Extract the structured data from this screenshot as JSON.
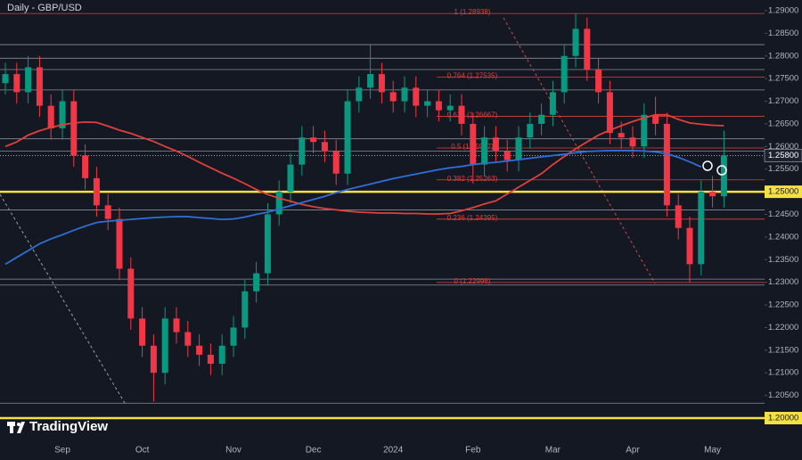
{
  "chart_data": {
    "type": "candlestick",
    "title": "Daily - GBP/USD",
    "branding": "TradingView",
    "categories": [
      null,
      null,
      null,
      null,
      null,
      "Sep",
      null,
      null,
      null,
      null,
      null,
      null,
      "Oct",
      null,
      null,
      null,
      null,
      null,
      null,
      null,
      "Nov",
      null,
      null,
      null,
      null,
      null,
      null,
      "Dec",
      null,
      null,
      null,
      null,
      null,
      null,
      "2024",
      null,
      null,
      null,
      null,
      null,
      null,
      "Feb",
      null,
      null,
      null,
      null,
      null,
      null,
      "Mar",
      null,
      null,
      null,
      null,
      null,
      null,
      "Apr",
      null,
      null,
      null,
      null,
      null,
      null,
      "May",
      null
    ],
    "open": [
      1.274,
      1.276,
      1.272,
      1.2775,
      1.269,
      1.264,
      1.27,
      1.258,
      1.253,
      1.247,
      1.244,
      1.233,
      1.222,
      1.216,
      1.21,
      1.222,
      1.219,
      1.216,
      1.214,
      1.212,
      1.216,
      1.22,
      1.228,
      1.232,
      1.245,
      1.25,
      1.256,
      1.262,
      1.261,
      1.259,
      1.254,
      1.27,
      1.273,
      1.276,
      1.272,
      1.27,
      1.273,
      1.269,
      1.27,
      1.268,
      1.269,
      1.265,
      1.256,
      1.262,
      1.259,
      1.257,
      1.262,
      1.265,
      1.267,
      1.272,
      1.28,
      1.286,
      1.277,
      1.272,
      1.263,
      1.262,
      1.26,
      1.267,
      1.265,
      1.247,
      1.242,
      1.234,
      1.25,
      1.249
    ],
    "high": [
      1.2785,
      1.2785,
      1.28,
      1.28,
      1.2715,
      1.2725,
      1.2725,
      1.2605,
      1.2555,
      1.2495,
      1.2465,
      1.2355,
      1.2245,
      1.2185,
      1.2245,
      1.2245,
      1.2215,
      1.2185,
      1.2165,
      1.2185,
      1.2225,
      1.2305,
      1.2345,
      1.2475,
      1.2525,
      1.2585,
      1.2645,
      1.2645,
      1.2635,
      1.2615,
      1.2725,
      1.2755,
      1.2825,
      1.2785,
      1.2745,
      1.2755,
      1.2755,
      1.2725,
      1.2725,
      1.2715,
      1.2715,
      1.2675,
      1.2645,
      1.2645,
      1.2615,
      1.2645,
      1.2675,
      1.2695,
      1.2745,
      1.2825,
      1.2894,
      1.2885,
      1.2795,
      1.2745,
      1.2655,
      1.2645,
      1.2695,
      1.271,
      1.2675,
      1.2495,
      1.2445,
      1.2525,
      1.2535,
      1.2635
    ],
    "low": [
      1.2715,
      1.2695,
      1.2695,
      1.2665,
      1.2615,
      1.2615,
      1.2555,
      1.2505,
      1.2445,
      1.2415,
      1.2305,
      1.2195,
      1.2135,
      1.2037,
      1.2075,
      1.2165,
      1.2135,
      1.2115,
      1.2095,
      1.2095,
      1.2135,
      1.2175,
      1.2255,
      1.2295,
      1.2425,
      1.2475,
      1.2535,
      1.2585,
      1.2565,
      1.2515,
      1.2515,
      1.2675,
      1.2705,
      1.2695,
      1.2675,
      1.2675,
      1.2665,
      1.2665,
      1.2655,
      1.2655,
      1.2625,
      1.2518,
      1.2535,
      1.2565,
      1.2545,
      1.2545,
      1.2595,
      1.2625,
      1.2645,
      1.2695,
      1.2775,
      1.2745,
      1.2695,
      1.2605,
      1.2595,
      1.2575,
      1.2575,
      1.2625,
      1.2445,
      1.2395,
      1.23,
      1.2315,
      1.2465,
      1.2465
    ],
    "close": [
      1.276,
      1.272,
      1.2775,
      1.269,
      1.264,
      1.27,
      1.258,
      1.253,
      1.247,
      1.244,
      1.233,
      1.222,
      1.216,
      1.21,
      1.222,
      1.219,
      1.216,
      1.214,
      1.212,
      1.216,
      1.22,
      1.228,
      1.232,
      1.245,
      1.25,
      1.256,
      1.262,
      1.261,
      1.259,
      1.254,
      1.27,
      1.273,
      1.276,
      1.272,
      1.27,
      1.273,
      1.269,
      1.27,
      1.268,
      1.269,
      1.265,
      1.256,
      1.262,
      1.259,
      1.257,
      1.262,
      1.265,
      1.267,
      1.272,
      1.28,
      1.286,
      1.277,
      1.272,
      1.263,
      1.262,
      1.26,
      1.267,
      1.265,
      1.247,
      1.242,
      1.234,
      1.25,
      1.249,
      1.258
    ],
    "up_color": "#089981",
    "down_color": "#f23645",
    "series": [
      {
        "color": "#e0403a",
        "values": [
          1.26,
          1.261,
          1.2625,
          1.2635,
          1.2642,
          1.2648,
          1.2652,
          1.2654,
          1.2653,
          1.2645,
          1.2636,
          1.2629,
          1.262,
          1.2611,
          1.26,
          1.259,
          1.2578,
          1.2565,
          1.2553,
          1.2541,
          1.253,
          1.2518,
          1.2505,
          1.2494,
          1.2486,
          1.2479,
          1.2472,
          1.2467,
          1.2463,
          1.246,
          1.2457,
          1.2455,
          1.2454,
          1.2453,
          1.2453,
          1.2452,
          1.2452,
          1.2451,
          1.2451,
          1.2452,
          1.2458,
          1.2465,
          1.2473,
          1.248,
          1.2495,
          1.251,
          1.2525,
          1.254,
          1.256,
          1.2578,
          1.2595,
          1.261,
          1.2625,
          1.2636,
          1.2646,
          1.2655,
          1.2663,
          1.267,
          1.267,
          1.266,
          1.2652,
          1.2649,
          1.2647,
          1.2646
        ]
      },
      {
        "color": "#2f6fd6",
        "values": [
          1.234,
          1.2355,
          1.237,
          1.2385,
          1.2396,
          1.2405,
          1.2415,
          1.2424,
          1.2432,
          1.2435,
          1.2437,
          1.2439,
          1.2441,
          1.2443,
          1.2444,
          1.2445,
          1.2445,
          1.2443,
          1.2441,
          1.2439,
          1.244,
          1.2444,
          1.245,
          1.2455,
          1.2462,
          1.2469,
          1.2476,
          1.2483,
          1.249,
          1.2498,
          1.2505,
          1.2511,
          1.2517,
          1.2523,
          1.2529,
          1.2534,
          1.2539,
          1.2544,
          1.2549,
          1.2553,
          1.2556,
          1.256,
          1.2563,
          1.2565,
          1.2568,
          1.2571,
          1.2574,
          1.2577,
          1.258,
          1.2583,
          1.2586,
          1.2589,
          1.259,
          1.2591,
          1.2591,
          1.2591,
          1.259,
          1.2588,
          1.2584,
          1.2576,
          1.2566,
          1.2555,
          null,
          null
        ]
      }
    ],
    "ylim": [
      1.19626,
      1.29236
    ],
    "yticks": [
      {
        "value": 1.29,
        "label": "1.29000"
      },
      {
        "value": 1.285,
        "label": "1.28500"
      },
      {
        "value": 1.28,
        "label": "1.28000"
      },
      {
        "value": 1.275,
        "label": "1.27500"
      },
      {
        "value": 1.27,
        "label": "1.27000"
      },
      {
        "value": 1.265,
        "label": "1.26500"
      },
      {
        "value": 1.26,
        "label": "1.26000"
      },
      {
        "value": 1.255,
        "label": "1.25500"
      },
      {
        "value": 1.245,
        "label": "1.24500"
      },
      {
        "value": 1.24,
        "label": "1.24000"
      },
      {
        "value": 1.235,
        "label": "1.23500"
      },
      {
        "value": 1.23,
        "label": "1.23000"
      },
      {
        "value": 1.225,
        "label": "1.22500"
      },
      {
        "value": 1.22,
        "label": "1.22000"
      },
      {
        "value": 1.215,
        "label": "1.21500"
      },
      {
        "value": 1.21,
        "label": "1.21000"
      },
      {
        "value": 1.205,
        "label": "1.20500"
      }
    ],
    "key_levels": [
      {
        "value": 1.25,
        "label": "1.25000"
      },
      {
        "value": 1.2,
        "label": "1.20000"
      }
    ],
    "key_level_color": "#f5e042",
    "last_price": {
      "value": 1.258,
      "label": "1.25800"
    },
    "levels": [
      1.2825,
      1.2795,
      1.277,
      1.2725,
      1.2617,
      1.259,
      1.246,
      1.2307,
      1.2294,
      1.2033
    ],
    "fib_levels": [
      {
        "value": 1.28938,
        "label": "1 (1.28938)"
      },
      {
        "value": 1.27535,
        "label": "0.764 (1.27535)"
      },
      {
        "value": 1.26667,
        "label": "0.618 (1.26667)"
      },
      {
        "value": 1.25967,
        "label": "0.5 (1.25967)"
      },
      {
        "value": 1.25263,
        "label": "0.382 (1.25263)"
      },
      {
        "value": 1.24395,
        "label": "0.236 (1.24395)"
      },
      {
        "value": 1.22996,
        "label": "0 (1.22996)"
      }
    ],
    "fib_color": "#e0403a",
    "grid": false
  }
}
